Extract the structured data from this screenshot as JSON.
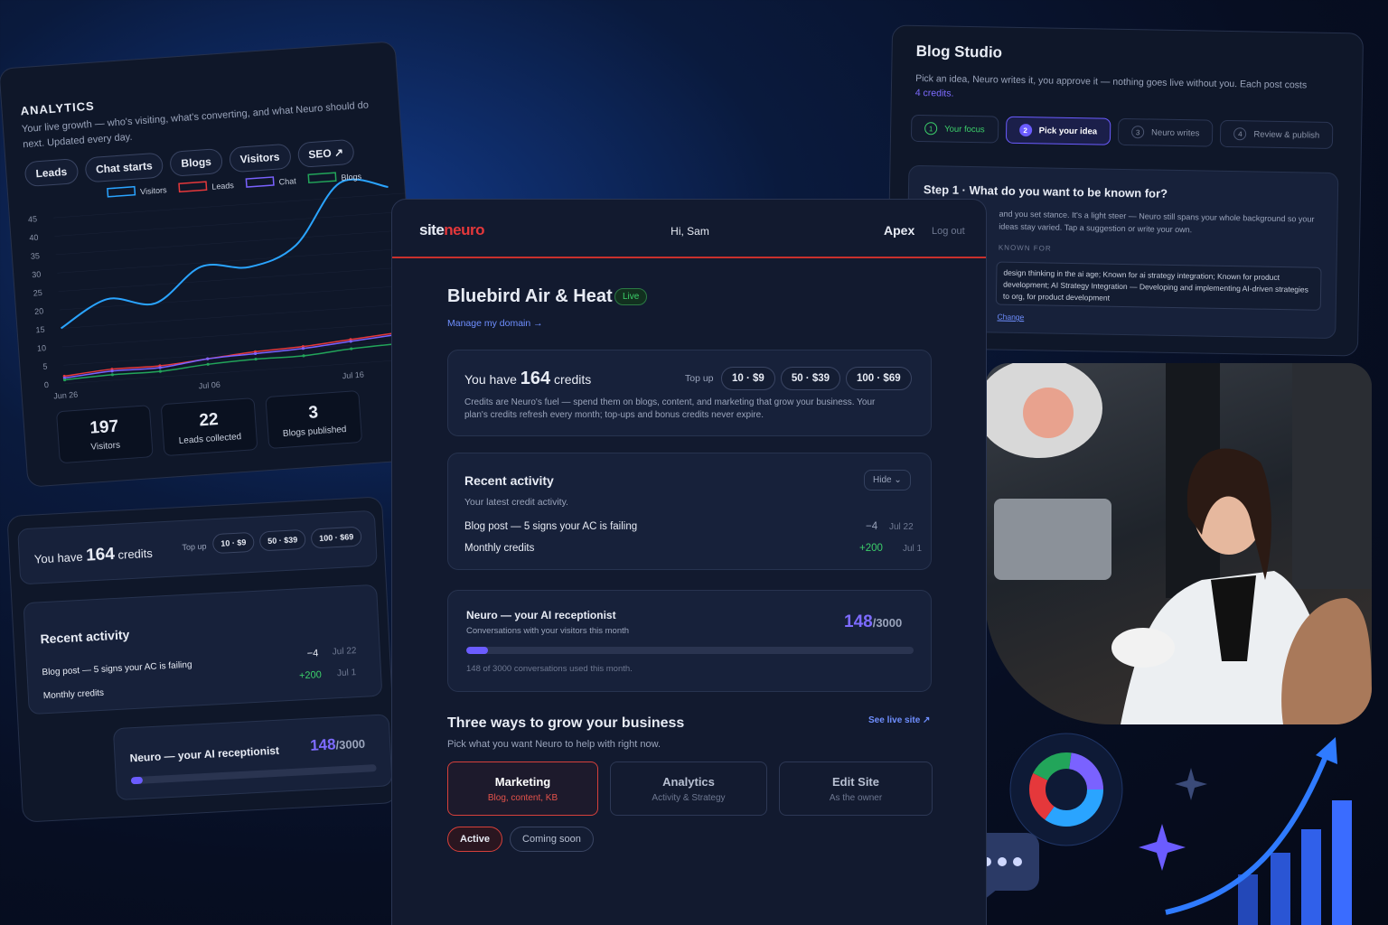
{
  "analytics": {
    "title": "ANALYTICS",
    "subtitle": "Your live growth — who's visiting, what's converting, and what Neuro should do next. Updated every day.",
    "tabs": [
      "Leads",
      "Chat starts",
      "Blogs",
      "Visitors",
      "SEO ↗"
    ],
    "chart": {
      "type": "line",
      "categories": [
        "Jun 26",
        null,
        null,
        "Jul 06",
        null,
        null,
        "Jul 16",
        null
      ],
      "series": [
        {
          "name": "Visitors",
          "color": "#2aa4ff",
          "values": [
            15,
            22,
            20,
            29,
            28,
            33,
            49,
            47
          ]
        },
        {
          "name": "Leads",
          "color": "#e5383b",
          "values": [
            2,
            3,
            3,
            4,
            5,
            5.5,
            6.5,
            7.5
          ]
        },
        {
          "name": "Chat",
          "color": "#7a62ff",
          "values": [
            1.5,
            2.5,
            2.5,
            4,
            4.5,
            5,
            6,
            7
          ]
        },
        {
          "name": "Blogs",
          "color": "#22a55a",
          "values": [
            1,
            1.5,
            1.5,
            2.5,
            3,
            3,
            4,
            4.5
          ]
        }
      ],
      "ylim": [
        0,
        45
      ],
      "yticks": [
        0,
        5,
        10,
        15,
        20,
        25,
        30,
        35,
        40,
        45
      ]
    },
    "stats": [
      {
        "value": "197",
        "label": "Visitors"
      },
      {
        "value": "22",
        "label": "Leads collected"
      },
      {
        "value": "3",
        "label": "Blogs published"
      }
    ]
  },
  "header": {
    "logo_site": "site",
    "logo_neuro": "neuro",
    "greeting": "Hi, Sam",
    "plan": "Apex",
    "logout": "Log out"
  },
  "business": {
    "name": "Bluebird Air & Heat",
    "status": "Live",
    "domain_link": "Manage my domain →"
  },
  "credits": {
    "prefix": "You have",
    "amount": 164,
    "suffix": "credits",
    "topup_label": "Top up",
    "topups": [
      "10 · $9",
      "50 · $39",
      "100 · $69"
    ],
    "description": "Credits are Neuro's fuel — spend them on blogs, content, and marketing that grow your business. Your plan's credits refresh every month; top-ups and bonus credits never expire."
  },
  "activity": {
    "title": "Recent activity",
    "hide": "Hide",
    "subtitle": "Your latest credit activity.",
    "rows": [
      {
        "label": "Blog post — 5 signs your AC is failing",
        "amount": "−4",
        "date": "Jul 22"
      },
      {
        "label": "Monthly credits",
        "amount": "+200",
        "date": "Jul 1"
      }
    ]
  },
  "receptionist": {
    "title": "Neuro — your AI receptionist",
    "subtitle": "Conversations with your visitors this month",
    "used": 148,
    "limit": 3000,
    "note": "148 of 3000 conversations used this month."
  },
  "grow": {
    "title": "Three ways to grow your business",
    "subtitle": "Pick what you want Neuro to help with right now.",
    "live_link": "See live site ↗",
    "options": [
      {
        "title": "Marketing",
        "sub": "Blog, content, KB"
      },
      {
        "title": "Analytics",
        "sub": "Activity & Strategy"
      },
      {
        "title": "Edit Site",
        "sub": "As the owner"
      }
    ],
    "pills": [
      "Active",
      "Coming soon"
    ]
  },
  "blog_studio": {
    "title": "Blog Studio",
    "description": "Pick an idea, Neuro writes it, you approve it — nothing goes live without you. Each post costs",
    "cost": "4 credits.",
    "steps": [
      {
        "num": "1",
        "label": "Your focus"
      },
      {
        "num": "2",
        "label": "Pick your idea"
      },
      {
        "num": "3",
        "label": "Neuro writes"
      },
      {
        "num": "4",
        "label": "Review & publish"
      }
    ],
    "step_title": "Step 1 · What do you want to be known for?",
    "step_body": "and you set stance. It's a light steer — Neuro still spans your whole background so your ideas stay varied. Tap a suggestion or write your own.",
    "field_label": "KNOWN FOR",
    "field_value": "design thinking in the ai age; Known for ai strategy integration; Known for product development; AI Strategy Integration — Developing and implementing AI-driven strategies to org, for product development",
    "change": "Change"
  }
}
